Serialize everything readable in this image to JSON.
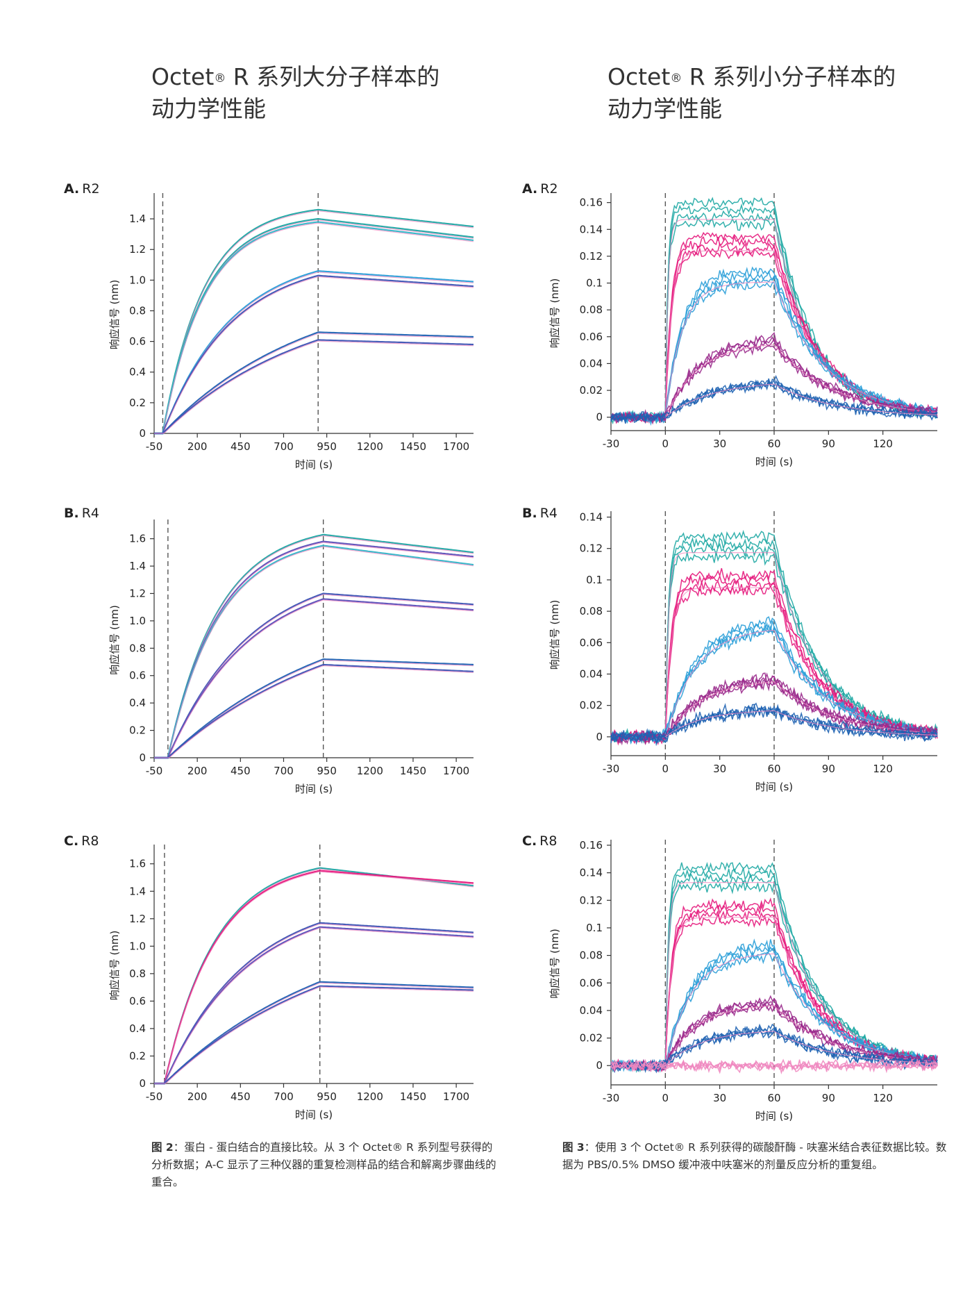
{
  "headings": {
    "left": {
      "line1": "Octet",
      "reg": "®",
      "line1b": " R 系列大分子样本的",
      "line2": "动力学性能"
    },
    "right": {
      "line1": "Octet",
      "reg": "®",
      "line1b": " R 系列小分子样本的",
      "line2": "动力学性能"
    }
  },
  "captions": {
    "left": {
      "label": "图 2",
      "text": "：蛋白 - 蛋白结合的直接比较。从 3 个 Octet® R 系列型号获得的分析数据；A-C 显示了三种仪器的重复检测样品的结合和解离步骤曲线的重合。"
    },
    "right": {
      "label": "图 3",
      "text": "：使用 3 个 Octet® R 系列获得的碳酸酐酶 - 呋塞米结合表征数据比较。数据为 PBS/0.5% DMSO 缓冲液中呋塞米的剂量反应分析的重复组。"
    }
  },
  "colors": {
    "teal": "#1fa8a4",
    "magenta": "#e6187c",
    "sky": "#2a9fd8",
    "purple": "#9a2a8c",
    "blue": "#1f63b3",
    "royal": "#3c54b4",
    "violet": "#5a4fb8",
    "pink": "#f088c0",
    "cyan": "#32b6c8"
  },
  "chart_data": [
    {
      "id": "large-r2",
      "type": "line",
      "panel_letter": "A.",
      "panel_name": "R2",
      "xlabel": "时间 (s)",
      "ylabel": "响应信号 (nm)",
      "xlim": [
        -50,
        1800
      ],
      "ylim": [
        0,
        1.55
      ],
      "xticks": [
        -50,
        200,
        450,
        700,
        950,
        1200,
        1450,
        1700
      ],
      "xtick_labels": [
        "-50",
        "200",
        "450",
        "700",
        "950",
        "1200",
        "1450",
        "1700"
      ],
      "yticks": [
        0,
        0.2,
        0.4,
        0.6,
        0.8,
        1.0,
        1.2,
        1.4
      ],
      "ytick_labels": [
        "0",
        "0.2",
        "0.4",
        "0.6",
        "0.8",
        "1.0",
        "1.2",
        "1.4"
      ],
      "vlines": [
        0,
        900
      ],
      "series": [
        {
          "color": "teal",
          "plateau": 1.46,
          "end": 1.35,
          "k": 0.0042
        },
        {
          "color": "teal",
          "plateau": 1.4,
          "end": 1.28,
          "k": 0.0042
        },
        {
          "color": "cyan",
          "plateau": 1.38,
          "end": 1.26,
          "k": 0.0042
        },
        {
          "color": "sky",
          "plateau": 1.06,
          "end": 0.99,
          "k": 0.0025
        },
        {
          "color": "royal",
          "plateau": 1.03,
          "end": 0.96,
          "k": 0.0025
        },
        {
          "color": "blue",
          "plateau": 0.66,
          "end": 0.63,
          "k": 0.0012
        },
        {
          "color": "royal",
          "plateau": 0.61,
          "end": 0.58,
          "k": 0.0012
        }
      ]
    },
    {
      "id": "large-r4",
      "type": "line",
      "panel_letter": "B.",
      "panel_name": "R4",
      "xlabel": "时间 (s)",
      "ylabel": "响应信号 (nm)",
      "xlim": [
        -50,
        1800
      ],
      "ylim": [
        0,
        1.72
      ],
      "xticks": [
        -50,
        200,
        450,
        700,
        950,
        1200,
        1450,
        1700
      ],
      "xtick_labels": [
        "-50",
        "200",
        "450",
        "700",
        "950",
        "1200",
        "1450",
        "1700"
      ],
      "yticks": [
        0,
        0.2,
        0.4,
        0.6,
        0.8,
        1.0,
        1.2,
        1.4,
        1.6
      ],
      "ytick_labels": [
        "0",
        "0.2",
        "0.4",
        "0.6",
        "0.8",
        "1.0",
        "1.2",
        "1.4",
        "1.6"
      ],
      "vlines": [
        30,
        930
      ],
      "series": [
        {
          "color": "teal",
          "plateau": 1.63,
          "end": 1.5,
          "k": 0.0034
        },
        {
          "color": "violet",
          "plateau": 1.58,
          "end": 1.47,
          "k": 0.0034
        },
        {
          "color": "cyan",
          "plateau": 1.55,
          "end": 1.41,
          "k": 0.0034
        },
        {
          "color": "royal",
          "plateau": 1.2,
          "end": 1.12,
          "k": 0.0021
        },
        {
          "color": "violet",
          "plateau": 1.16,
          "end": 1.08,
          "k": 0.0021
        },
        {
          "color": "blue",
          "plateau": 0.72,
          "end": 0.68,
          "k": 0.001
        },
        {
          "color": "royal",
          "plateau": 0.68,
          "end": 0.63,
          "k": 0.001
        }
      ]
    },
    {
      "id": "large-r8",
      "type": "line",
      "panel_letter": "C.",
      "panel_name": "R8",
      "xlabel": "时间 (s)",
      "ylabel": "响应信号 (nm)",
      "xlim": [
        -50,
        1800
      ],
      "ylim": [
        0,
        1.72
      ],
      "xticks": [
        -50,
        200,
        450,
        700,
        950,
        1200,
        1450,
        1700
      ],
      "xtick_labels": [
        "-50",
        "200",
        "450",
        "700",
        "950",
        "1200",
        "1450",
        "1700"
      ],
      "yticks": [
        0,
        0.2,
        0.4,
        0.6,
        0.8,
        1.0,
        1.2,
        1.4,
        1.6
      ],
      "ytick_labels": [
        "0",
        "0.2",
        "0.4",
        "0.6",
        "0.8",
        "1.0",
        "1.2",
        "1.4",
        "1.6"
      ],
      "vlines": [
        10,
        910
      ],
      "series": [
        {
          "color": "teal",
          "plateau": 1.57,
          "end": 1.44,
          "k": 0.0034
        },
        {
          "color": "magenta",
          "plateau": 1.55,
          "end": 1.46,
          "k": 0.0034
        },
        {
          "color": "royal",
          "plateau": 1.17,
          "end": 1.1,
          "k": 0.0021
        },
        {
          "color": "violet",
          "plateau": 1.14,
          "end": 1.07,
          "k": 0.0021
        },
        {
          "color": "blue",
          "plateau": 0.74,
          "end": 0.7,
          "k": 0.001
        },
        {
          "color": "royal",
          "plateau": 0.71,
          "end": 0.68,
          "k": 0.001
        }
      ]
    },
    {
      "id": "small-r2",
      "type": "line",
      "panel_letter": "A.",
      "panel_name": "R2",
      "xlabel": "时间 (s)",
      "ylabel": "响应信号 (nm)",
      "xlim": [
        -30,
        150
      ],
      "ylim": [
        -0.01,
        0.165
      ],
      "xticks": [
        -30,
        0,
        30,
        60,
        90,
        120
      ],
      "xtick_labels": [
        "-30",
        "0",
        "30",
        "60",
        "90",
        "120"
      ],
      "yticks": [
        0,
        0.02,
        0.04,
        0.06,
        0.08,
        0.1,
        0.12,
        0.14,
        0.16
      ],
      "ytick_labels": [
        "0",
        "0.02",
        "0.04",
        "0.06",
        "0.08",
        "0.1",
        "0.12",
        "0.14",
        "0.16"
      ],
      "vlines": [
        0,
        60
      ],
      "series": [
        {
          "color": "teal",
          "plateau": 0.152,
          "ka": 0.7,
          "kd": 0.045,
          "noise": 0.004
        },
        {
          "color": "magenta",
          "plateau": 0.128,
          "ka": 0.3,
          "kd": 0.04,
          "noise": 0.004
        },
        {
          "color": "sky",
          "plateau": 0.104,
          "ka": 0.11,
          "kd": 0.035,
          "noise": 0.004
        },
        {
          "color": "purple",
          "plateau": 0.058,
          "ka": 0.055,
          "kd": 0.03,
          "noise": 0.004
        },
        {
          "color": "blue",
          "plateau": 0.028,
          "ka": 0.04,
          "kd": 0.03,
          "noise": 0.004
        }
      ]
    },
    {
      "id": "small-r4",
      "type": "line",
      "panel_letter": "B.",
      "panel_name": "R4",
      "xlabel": "时间 (s)",
      "ylabel": "响应信号 (nm)",
      "xlim": [
        -30,
        150
      ],
      "ylim": [
        -0.012,
        0.142
      ],
      "xticks": [
        -30,
        0,
        30,
        60,
        90,
        120
      ],
      "xtick_labels": [
        "-30",
        "0",
        "30",
        "60",
        "90",
        "120"
      ],
      "yticks": [
        0,
        0.02,
        0.04,
        0.06,
        0.08,
        0.1,
        0.12,
        0.14
      ],
      "ytick_labels": [
        "0",
        "0.02",
        "0.04",
        "0.06",
        "0.08",
        "0.1",
        "0.12",
        "0.14"
      ],
      "vlines": [
        0,
        60
      ],
      "series": [
        {
          "color": "teal",
          "plateau": 0.121,
          "ka": 0.6,
          "kd": 0.04,
          "noise": 0.004
        },
        {
          "color": "magenta",
          "plateau": 0.098,
          "ka": 0.3,
          "kd": 0.04,
          "noise": 0.004
        },
        {
          "color": "sky",
          "plateau": 0.072,
          "ka": 0.06,
          "kd": 0.035,
          "noise": 0.004
        },
        {
          "color": "purple",
          "plateau": 0.038,
          "ka": 0.05,
          "kd": 0.03,
          "noise": 0.004
        },
        {
          "color": "blue",
          "plateau": 0.018,
          "ka": 0.05,
          "kd": 0.03,
          "noise": 0.004
        }
      ]
    },
    {
      "id": "small-r8",
      "type": "line",
      "panel_letter": "C.",
      "panel_name": "R8",
      "xlabel": "时间 (s)",
      "ylabel": "响应信号 (nm)",
      "xlim": [
        -30,
        150
      ],
      "ylim": [
        -0.014,
        0.162
      ],
      "xticks": [
        -30,
        0,
        30,
        60,
        90,
        120
      ],
      "xtick_labels": [
        "-30",
        "0",
        "30",
        "60",
        "90",
        "120"
      ],
      "yticks": [
        0,
        0.02,
        0.04,
        0.06,
        0.08,
        0.1,
        0.12,
        0.14,
        0.16
      ],
      "ytick_labels": [
        "0",
        "0.02",
        "0.04",
        "0.06",
        "0.08",
        "0.1",
        "0.12",
        "0.14",
        "0.16"
      ],
      "vlines": [
        0,
        60
      ],
      "series": [
        {
          "color": "teal",
          "plateau": 0.137,
          "ka": 0.6,
          "kd": 0.04,
          "noise": 0.004
        },
        {
          "color": "magenta",
          "plateau": 0.111,
          "ka": 0.3,
          "kd": 0.04,
          "noise": 0.004
        },
        {
          "color": "sky",
          "plateau": 0.085,
          "ka": 0.07,
          "kd": 0.035,
          "noise": 0.004
        },
        {
          "color": "purple",
          "plateau": 0.046,
          "ka": 0.06,
          "kd": 0.03,
          "noise": 0.004
        },
        {
          "color": "blue",
          "plateau": 0.027,
          "ka": 0.05,
          "kd": 0.03,
          "noise": 0.004
        },
        {
          "color": "pink",
          "plateau": 0.0,
          "ka": 0.05,
          "kd": 0.03,
          "noise": 0.004
        }
      ]
    }
  ]
}
